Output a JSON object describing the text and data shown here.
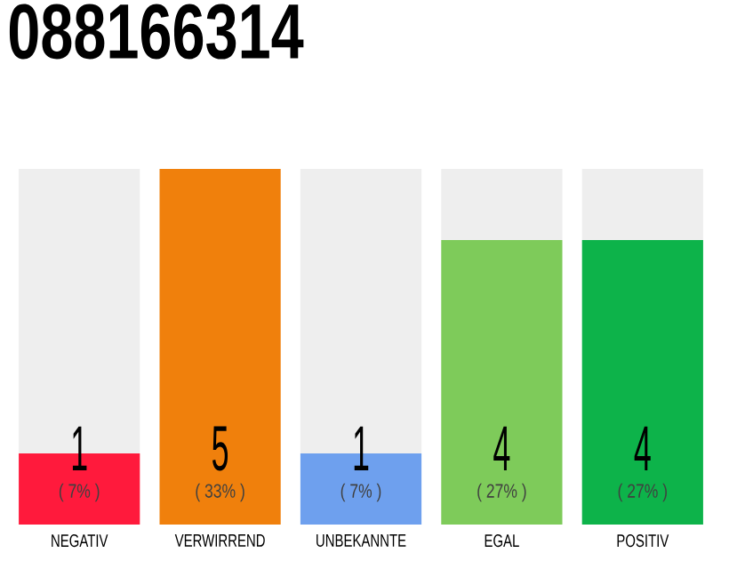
{
  "chart_data": {
    "type": "bar",
    "title": "088166314",
    "categories": [
      "NEGATIV",
      "VERWIRREND",
      "UNBEKANNTE",
      "EGAL",
      "POSITIV"
    ],
    "stacked": true,
    "ylim": [
      0,
      5
    ],
    "tick_labels": "x",
    "series": [
      {
        "colors": [
          "#ff1a3c",
          "#f0800c",
          "#6ea0ee",
          "#7ecb5a",
          "#0db34a"
        ],
        "values": [
          1,
          5,
          1,
          4,
          4
        ],
        "value_labels": [
          "1",
          "5",
          "1",
          "4",
          "4"
        ]
      },
      {
        "color": "#eeeeee",
        "values": [
          4,
          0,
          4,
          1,
          1
        ]
      }
    ],
    "annotations": [
      "( 7% )",
      "( 33% )",
      "( 7% )",
      "( 27% )",
      "( 27% )"
    ]
  }
}
